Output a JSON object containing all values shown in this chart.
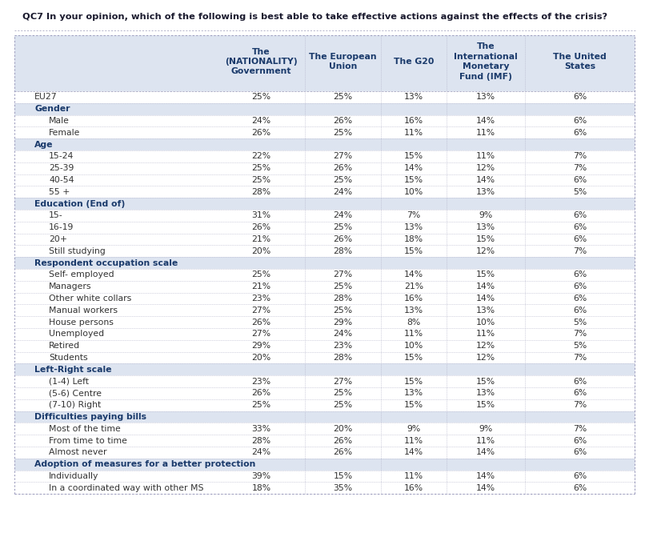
{
  "title": "QC7 In your opinion, which of the following is best able to take effective actions against the effects of the crisis?",
  "col_headers": [
    "The\n(NATIONALITY)\nGovernment",
    "The European\nUnion",
    "The G20",
    "The\nInternational\nMonetary\nFund (IMF)",
    "The United\nStates"
  ],
  "rows": [
    {
      "label": "EU27",
      "values": [
        "25%",
        "25%",
        "13%",
        "13%",
        "6%"
      ],
      "type": "data",
      "indent": 0
    },
    {
      "label": "Gender",
      "values": [
        "",
        "",
        "",
        "",
        ""
      ],
      "type": "header"
    },
    {
      "label": "Male",
      "values": [
        "24%",
        "26%",
        "16%",
        "14%",
        "6%"
      ],
      "type": "data",
      "indent": 1
    },
    {
      "label": "Female",
      "values": [
        "26%",
        "25%",
        "11%",
        "11%",
        "6%"
      ],
      "type": "data",
      "indent": 1
    },
    {
      "label": "Age",
      "values": [
        "",
        "",
        "",
        "",
        ""
      ],
      "type": "header"
    },
    {
      "label": "15-24",
      "values": [
        "22%",
        "27%",
        "15%",
        "11%",
        "7%"
      ],
      "type": "data",
      "indent": 1
    },
    {
      "label": "25-39",
      "values": [
        "25%",
        "26%",
        "14%",
        "12%",
        "7%"
      ],
      "type": "data",
      "indent": 1
    },
    {
      "label": "40-54",
      "values": [
        "25%",
        "25%",
        "15%",
        "14%",
        "6%"
      ],
      "type": "data",
      "indent": 1
    },
    {
      "label": "55 +",
      "values": [
        "28%",
        "24%",
        "10%",
        "13%",
        "5%"
      ],
      "type": "data",
      "indent": 1
    },
    {
      "label": "Education (End of)",
      "values": [
        "",
        "",
        "",
        "",
        ""
      ],
      "type": "header"
    },
    {
      "label": "15-",
      "values": [
        "31%",
        "24%",
        "7%",
        "9%",
        "6%"
      ],
      "type": "data",
      "indent": 1
    },
    {
      "label": "16-19",
      "values": [
        "26%",
        "25%",
        "13%",
        "13%",
        "6%"
      ],
      "type": "data",
      "indent": 1
    },
    {
      "label": "20+",
      "values": [
        "21%",
        "26%",
        "18%",
        "15%",
        "6%"
      ],
      "type": "data",
      "indent": 1
    },
    {
      "label": "Still studying",
      "values": [
        "20%",
        "28%",
        "15%",
        "12%",
        "7%"
      ],
      "type": "data",
      "indent": 1
    },
    {
      "label": "Respondent occupation scale",
      "values": [
        "",
        "",
        "",
        "",
        ""
      ],
      "type": "header"
    },
    {
      "label": "Self- employed",
      "values": [
        "25%",
        "27%",
        "14%",
        "15%",
        "6%"
      ],
      "type": "data",
      "indent": 1
    },
    {
      "label": "Managers",
      "values": [
        "21%",
        "25%",
        "21%",
        "14%",
        "6%"
      ],
      "type": "data",
      "indent": 1
    },
    {
      "label": "Other white collars",
      "values": [
        "23%",
        "28%",
        "16%",
        "14%",
        "6%"
      ],
      "type": "data",
      "indent": 1
    },
    {
      "label": "Manual workers",
      "values": [
        "27%",
        "25%",
        "13%",
        "13%",
        "6%"
      ],
      "type": "data",
      "indent": 1
    },
    {
      "label": "House persons",
      "values": [
        "26%",
        "29%",
        "8%",
        "10%",
        "5%"
      ],
      "type": "data",
      "indent": 1
    },
    {
      "label": "Unemployed",
      "values": [
        "27%",
        "24%",
        "11%",
        "11%",
        "7%"
      ],
      "type": "data",
      "indent": 1
    },
    {
      "label": "Retired",
      "values": [
        "29%",
        "23%",
        "10%",
        "12%",
        "5%"
      ],
      "type": "data",
      "indent": 1
    },
    {
      "label": "Students",
      "values": [
        "20%",
        "28%",
        "15%",
        "12%",
        "7%"
      ],
      "type": "data",
      "indent": 1
    },
    {
      "label": "Left-Right scale",
      "values": [
        "",
        "",
        "",
        "",
        ""
      ],
      "type": "header"
    },
    {
      "label": "(1-4) Left",
      "values": [
        "23%",
        "27%",
        "15%",
        "15%",
        "6%"
      ],
      "type": "data",
      "indent": 1
    },
    {
      "label": "(5-6) Centre",
      "values": [
        "26%",
        "25%",
        "13%",
        "13%",
        "6%"
      ],
      "type": "data",
      "indent": 1
    },
    {
      "label": "(7-10) Right",
      "values": [
        "25%",
        "25%",
        "15%",
        "15%",
        "7%"
      ],
      "type": "data",
      "indent": 1
    },
    {
      "label": "Difficulties paying bills",
      "values": [
        "",
        "",
        "",
        "",
        ""
      ],
      "type": "header"
    },
    {
      "label": "Most of the time",
      "values": [
        "33%",
        "20%",
        "9%",
        "9%",
        "7%"
      ],
      "type": "data",
      "indent": 1
    },
    {
      "label": "From time to time",
      "values": [
        "28%",
        "26%",
        "11%",
        "11%",
        "6%"
      ],
      "type": "data",
      "indent": 1
    },
    {
      "label": "Almost never",
      "values": [
        "24%",
        "26%",
        "14%",
        "14%",
        "6%"
      ],
      "type": "data",
      "indent": 1
    },
    {
      "label": "Adoption of measures for a better protection",
      "values": [
        "",
        "",
        "",
        "",
        ""
      ],
      "type": "header"
    },
    {
      "label": "Individually",
      "values": [
        "39%",
        "15%",
        "11%",
        "14%",
        "6%"
      ],
      "type": "data",
      "indent": 1
    },
    {
      "label": "In a coordinated way with other MS",
      "values": [
        "18%",
        "35%",
        "16%",
        "14%",
        "6%"
      ],
      "type": "data",
      "indent": 1
    }
  ],
  "col_header_bg": "#dde4f0",
  "section_header_bg": "#dde4f0",
  "section_header_color": "#1a3a6b",
  "value_color": "#333333",
  "title_color": "#1a1a2e",
  "data_bg": "#ffffff",
  "border_color": "#a0a0c0",
  "dot_color": "#b0b0c8"
}
